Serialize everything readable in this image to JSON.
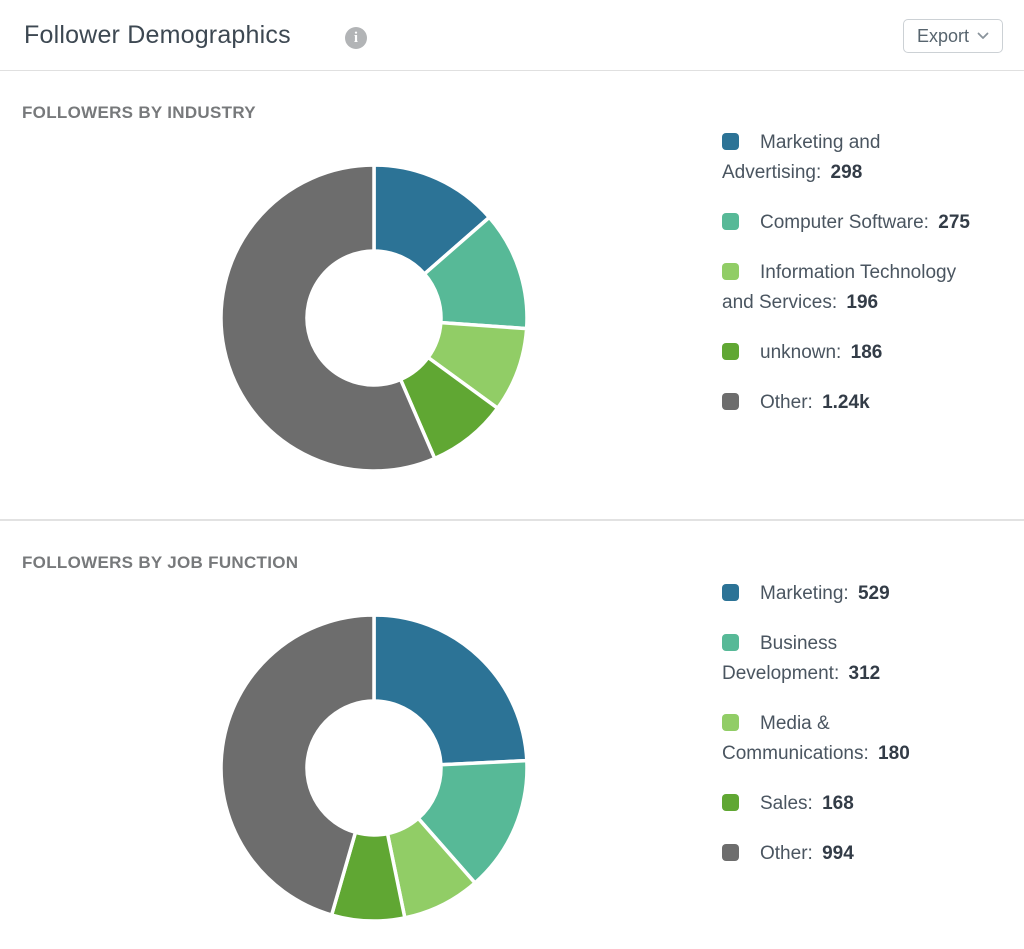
{
  "header": {
    "title": "Follower Demographics",
    "export_label": "Export"
  },
  "icons": {
    "info_glyph": "i"
  },
  "palette": {
    "blue": "#2c7396",
    "teal": "#57b997",
    "light_green": "#91cd66",
    "green": "#60a733",
    "gray": "#6d6d6d"
  },
  "chart_data": [
    {
      "type": "pie",
      "donut": true,
      "title": "FOLLOWERS BY INDUSTRY",
      "categories": [
        "Marketing and Advertising",
        "Computer Software",
        "Information Technology and Services",
        "unknown",
        "Other"
      ],
      "values": [
        298,
        275,
        196,
        186,
        1240
      ],
      "display_values": [
        "298",
        "275",
        "196",
        "186",
        "1.24k"
      ],
      "colors": [
        "#2c7396",
        "#57b997",
        "#91cd66",
        "#60a733",
        "#6d6d6d"
      ],
      "start_angle_deg": 0,
      "direction": "clockwise",
      "legend_position": "right"
    },
    {
      "type": "pie",
      "donut": true,
      "title": "FOLLOWERS BY JOB FUNCTION",
      "categories": [
        "Marketing",
        "Business Development",
        "Media & Communications",
        "Sales",
        "Other"
      ],
      "values": [
        529,
        312,
        180,
        168,
        994
      ],
      "display_values": [
        "529",
        "312",
        "180",
        "168",
        "994"
      ],
      "colors": [
        "#2c7396",
        "#57b997",
        "#91cd66",
        "#60a733",
        "#6d6d6d"
      ],
      "start_angle_deg": 0,
      "direction": "clockwise",
      "legend_position": "right"
    }
  ]
}
